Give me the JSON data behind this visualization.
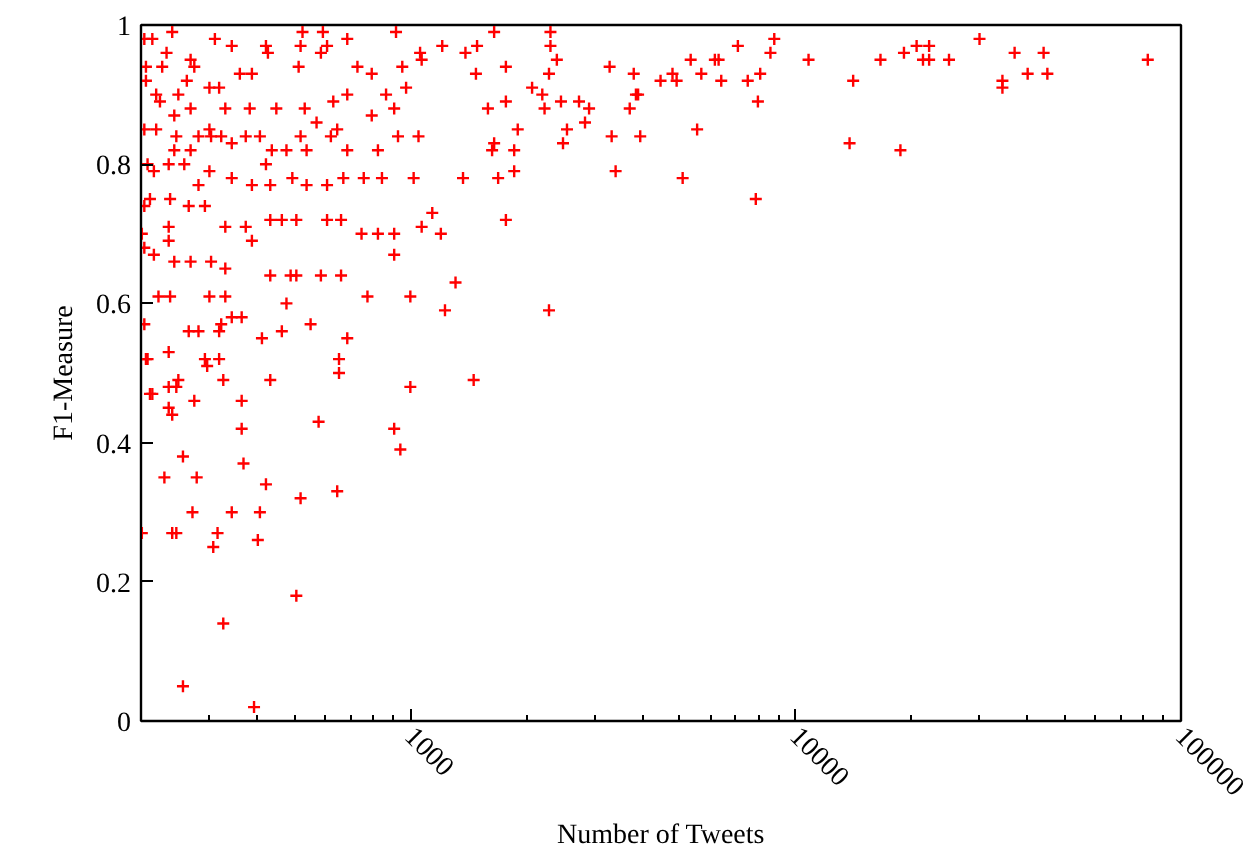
{
  "chart_data": {
    "type": "scatter",
    "xlabel": "Number of Tweets",
    "ylabel": "F1-Measure",
    "log": "x",
    "marker": "cross",
    "grid": false,
    "xlim": [
      200,
      100000
    ],
    "ylim": [
      0,
      1
    ],
    "xticks": [
      1000,
      10000,
      100000
    ],
    "yticks": [
      0,
      0.2,
      0.4,
      0.6,
      0.8,
      1
    ],
    "series": [
      {
        "color": "#ff0000",
        "x": [
          82000,
          45000,
          44000,
          40000,
          37000,
          34400,
          34400,
          30000,
          25000,
          22200,
          22200,
          20600,
          21400,
          19100,
          18700,
          16600,
          14100,
          13800,
          10800,
          8800,
          8600,
          8090,
          7980,
          7880,
          7510,
          7080,
          6410,
          6310,
          6170,
          5690,
          5550,
          5340,
          5090,
          4910,
          4790,
          4460,
          3950,
          3900,
          3850,
          3800,
          3710,
          3410,
          3330,
          3290,
          2910,
          2840,
          2740,
          2550,
          2490,
          2460,
          2400,
          2310,
          2310,
          2290,
          2290,
          2230,
          2200,
          2070,
          1900,
          1860,
          1860,
          1770,
          1770,
          1770,
          1650,
          1690,
          1650,
          1630,
          1590,
          1490,
          1480,
          1460,
          1390,
          1370,
          1310,
          1230,
          1210,
          1200,
          1140,
          1000,
          1000,
          908,
          257,
          393,
          327,
          506,
          201,
          241,
          247,
          316,
          308,
          402,
          272,
          344,
          407,
          519,
          646,
          230,
          279,
          257,
          369,
          422,
          365,
          578,
          908,
          942,
          365,
          275,
          214,
          211,
          236,
          247,
          250,
          236,
          241,
          293,
          319,
          327,
          297,
          433,
          653,
          653,
          206,
          236,
          204,
          241,
          214,
          311,
          344,
          422,
          427,
          525,
          593,
          519,
          608,
          686,
          918,
          1060,
          269,
          275,
          233,
          227,
          206,
          206,
          263,
          301,
          361,
          388,
          513,
          586,
          729,
          794,
          953,
          1070,
          865,
          975,
          219,
          224,
          250,
          269,
          319,
          331,
          383,
          449,
          532,
          631,
          686,
          571,
          646,
          794,
          908,
          204,
          219,
          244,
          247,
          244,
          269,
          282,
          301,
          304,
          323,
          344,
          374,
          407,
          437,
          477,
          519,
          538,
          622,
          686,
          824,
          929,
          1050,
          208,
          216,
          236,
          259,
          282,
          301,
          344,
          388,
          422,
          433,
          494,
          538,
          608,
          670,
          757,
          844,
          1020,
          204,
          211,
          238,
          266,
          293,
          331,
          374,
          388,
          433,
          464,
          506,
          608,
          661,
          747,
          824,
          908,
          1070,
          201,
          204,
          236,
          236,
          216,
          244,
          269,
          304,
          331,
          433,
          489,
          506,
          586,
          661,
          774,
          222,
          238,
          301,
          331,
          344,
          365,
          477,
          551,
          686,
          204,
          208,
          266,
          282,
          319,
          323,
          412,
          464
        ],
        "values": [
          0.95,
          0.93,
          0.96,
          0.93,
          0.96,
          0.92,
          0.91,
          0.98,
          0.95,
          0.97,
          0.95,
          0.97,
          0.95,
          0.96,
          0.82,
          0.95,
          0.92,
          0.83,
          0.95,
          0.98,
          0.96,
          0.93,
          0.89,
          0.75,
          0.92,
          0.97,
          0.92,
          0.95,
          0.95,
          0.93,
          0.85,
          0.95,
          0.78,
          0.92,
          0.93,
          0.92,
          0.84,
          0.9,
          0.9,
          0.93,
          0.88,
          0.79,
          0.84,
          0.94,
          0.88,
          0.86,
          0.89,
          0.85,
          0.83,
          0.89,
          0.95,
          0.99,
          0.97,
          0.93,
          0.59,
          0.88,
          0.9,
          0.91,
          0.85,
          0.82,
          0.79,
          0.72,
          0.94,
          0.89,
          0.99,
          0.78,
          0.83,
          0.82,
          0.88,
          0.97,
          0.93,
          0.49,
          0.96,
          0.78,
          0.63,
          0.59,
          0.97,
          0.7,
          0.73,
          0.61,
          0.48,
          0.67,
          0.05,
          0.02,
          0.14,
          0.18,
          0.27,
          0.27,
          0.27,
          0.27,
          0.25,
          0.26,
          0.3,
          0.3,
          0.3,
          0.32,
          0.33,
          0.35,
          0.35,
          0.38,
          0.37,
          0.34,
          0.42,
          0.43,
          0.42,
          0.39,
          0.46,
          0.46,
          0.47,
          0.47,
          0.48,
          0.48,
          0.49,
          0.45,
          0.44,
          0.52,
          0.52,
          0.49,
          0.51,
          0.49,
          0.52,
          0.5,
          0.52,
          0.53,
          0.98,
          0.99,
          0.98,
          0.98,
          0.97,
          0.97,
          0.96,
          0.99,
          0.99,
          0.97,
          0.97,
          0.98,
          0.99,
          0.96,
          0.95,
          0.94,
          0.96,
          0.94,
          0.94,
          0.92,
          0.92,
          0.91,
          0.93,
          0.93,
          0.94,
          0.96,
          0.94,
          0.93,
          0.94,
          0.95,
          0.9,
          0.91,
          0.9,
          0.89,
          0.9,
          0.88,
          0.91,
          0.88,
          0.88,
          0.88,
          0.88,
          0.89,
          0.9,
          0.86,
          0.85,
          0.87,
          0.88,
          0.85,
          0.85,
          0.87,
          0.84,
          0.82,
          0.82,
          0.84,
          0.85,
          0.84,
          0.84,
          0.83,
          0.84,
          0.84,
          0.82,
          0.82,
          0.84,
          0.82,
          0.84,
          0.82,
          0.82,
          0.84,
          0.84,
          0.8,
          0.79,
          0.8,
          0.8,
          0.77,
          0.79,
          0.78,
          0.77,
          0.8,
          0.77,
          0.78,
          0.77,
          0.77,
          0.78,
          0.78,
          0.78,
          0.78,
          0.74,
          0.75,
          0.75,
          0.74,
          0.74,
          0.71,
          0.71,
          0.69,
          0.72,
          0.72,
          0.72,
          0.72,
          0.72,
          0.7,
          0.7,
          0.7,
          0.71,
          0.7,
          0.68,
          0.71,
          0.69,
          0.67,
          0.66,
          0.66,
          0.66,
          0.65,
          0.64,
          0.64,
          0.64,
          0.64,
          0.64,
          0.61,
          0.61,
          0.61,
          0.61,
          0.61,
          0.58,
          0.58,
          0.6,
          0.57,
          0.55,
          0.57,
          0.52,
          0.56,
          0.56,
          0.56,
          0.57,
          0.55,
          0.56
        ]
      }
    ]
  }
}
